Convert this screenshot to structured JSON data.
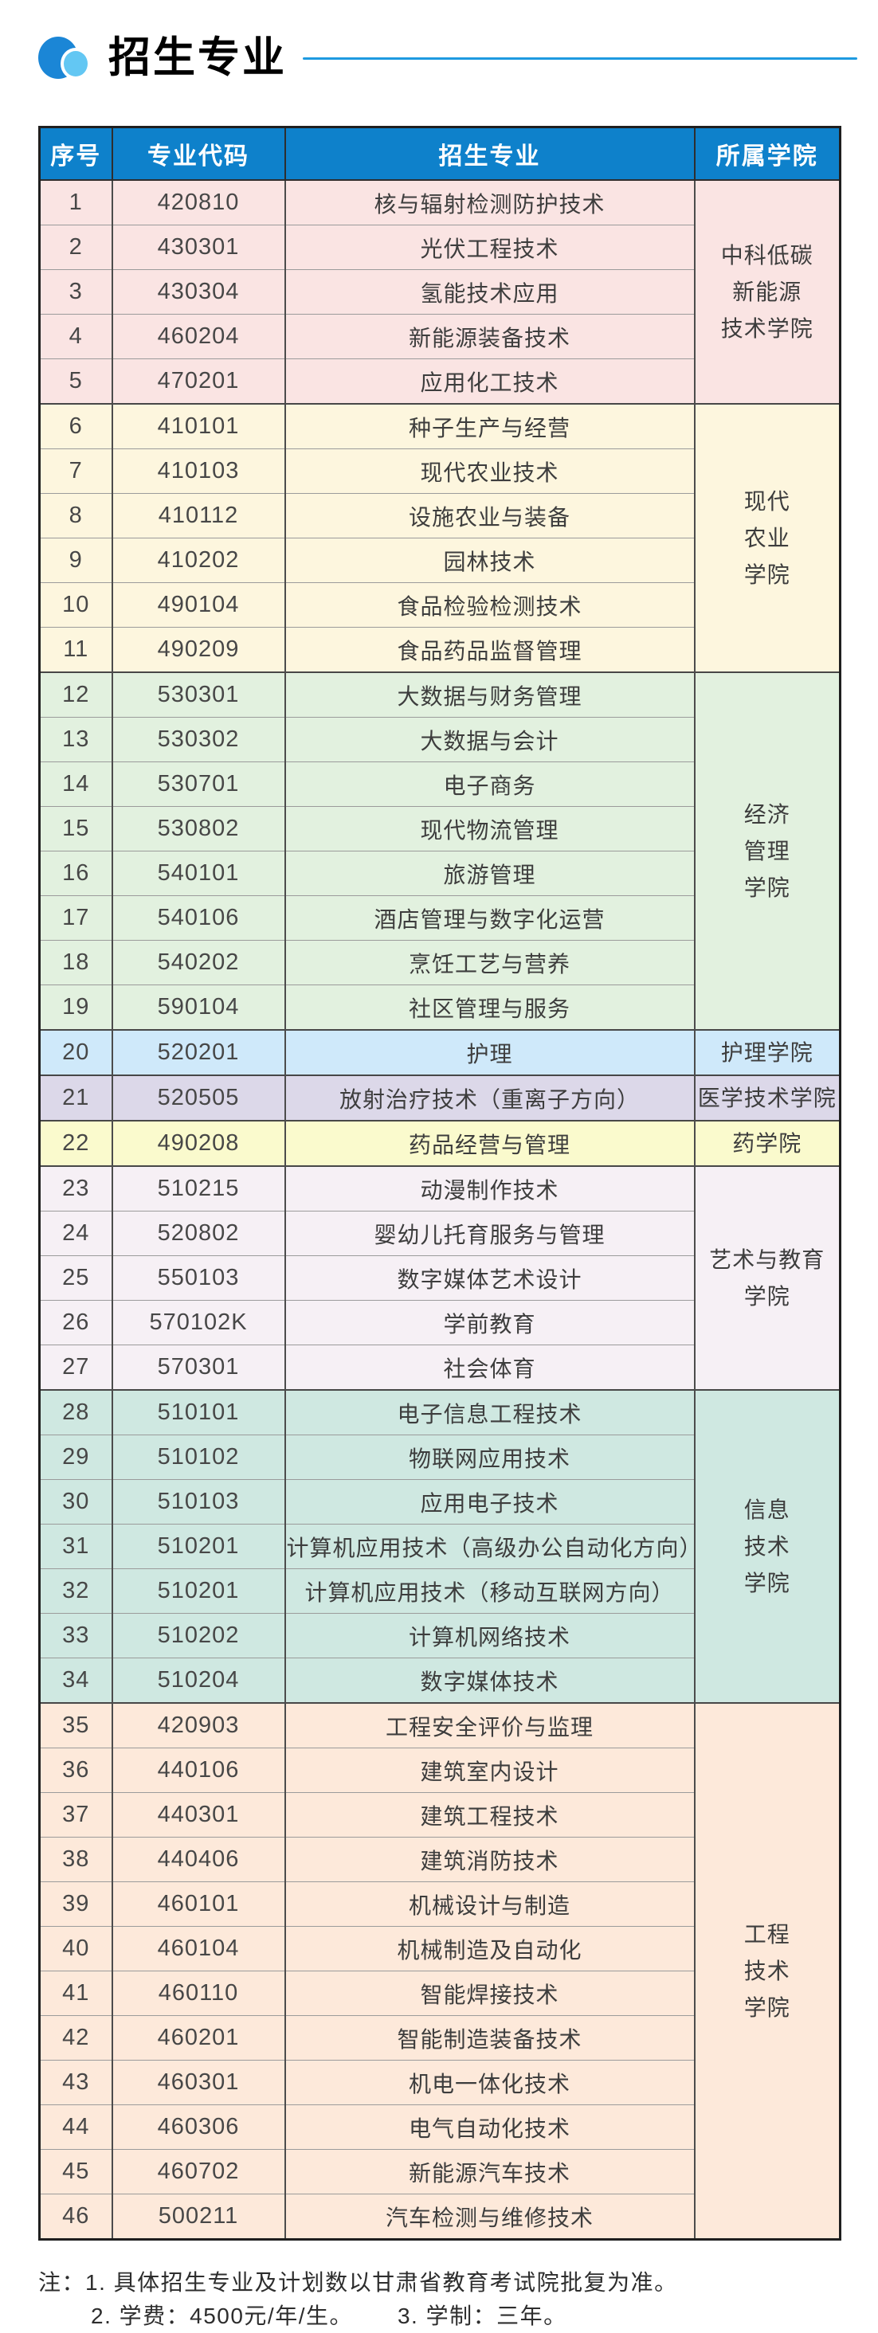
{
  "page_title": "招生专业",
  "colors": {
    "accent_blue": "#1e9ae0",
    "bullet_big": "#1b86d6",
    "bullet_small": "#63c7f3",
    "header_bg": "#0e81cb",
    "header_text": "#ffffff"
  },
  "table": {
    "headers": [
      "序号",
      "专业代码",
      "招生专业",
      "所属学院"
    ],
    "groups": [
      {
        "college": "中科低碳新能源技术学院",
        "college_display": "中科低碳\n新能源\n技术学院",
        "bg": "#fae4e3",
        "rows": [
          {
            "no": "1",
            "code": "420810",
            "major": "核与辐射检测防护技术"
          },
          {
            "no": "2",
            "code": "430301",
            "major": "光伏工程技术"
          },
          {
            "no": "3",
            "code": "430304",
            "major": "氢能技术应用"
          },
          {
            "no": "4",
            "code": "460204",
            "major": "新能源装备技术"
          },
          {
            "no": "5",
            "code": "470201",
            "major": "应用化工技术"
          }
        ]
      },
      {
        "college": "现代农业学院",
        "college_display": "现代\n农业\n学院",
        "bg": "#fdf6de",
        "rows": [
          {
            "no": "6",
            "code": "410101",
            "major": "种子生产与经营"
          },
          {
            "no": "7",
            "code": "410103",
            "major": "现代农业技术"
          },
          {
            "no": "8",
            "code": "410112",
            "major": "设施农业与装备"
          },
          {
            "no": "9",
            "code": "410202",
            "major": "园林技术"
          },
          {
            "no": "10",
            "code": "490104",
            "major": "食品检验检测技术"
          },
          {
            "no": "11",
            "code": "490209",
            "major": "食品药品监督管理"
          }
        ]
      },
      {
        "college": "经济管理学院",
        "college_display": "经济\n管理\n学院",
        "bg": "#e2f1df",
        "rows": [
          {
            "no": "12",
            "code": "530301",
            "major": "大数据与财务管理"
          },
          {
            "no": "13",
            "code": "530302",
            "major": "大数据与会计"
          },
          {
            "no": "14",
            "code": "530701",
            "major": "电子商务"
          },
          {
            "no": "15",
            "code": "530802",
            "major": "现代物流管理"
          },
          {
            "no": "16",
            "code": "540101",
            "major": "旅游管理"
          },
          {
            "no": "17",
            "code": "540106",
            "major": "酒店管理与数字化运营"
          },
          {
            "no": "18",
            "code": "540202",
            "major": "烹饪工艺与营养"
          },
          {
            "no": "19",
            "code": "590104",
            "major": "社区管理与服务"
          }
        ]
      },
      {
        "college": "护理学院",
        "college_display": "护理学院",
        "bg": "#cfe9fa",
        "rows": [
          {
            "no": "20",
            "code": "520201",
            "major": "护理"
          }
        ]
      },
      {
        "college": "医学技术学院",
        "college_display": "医学技术学院",
        "bg": "#dcd8e9",
        "rows": [
          {
            "no": "21",
            "code": "520505",
            "major": "放射治疗技术（重离子方向）"
          }
        ]
      },
      {
        "college": "药学院",
        "college_display": "药学院",
        "bg": "#fafacd",
        "rows": [
          {
            "no": "22",
            "code": "490208",
            "major": "药品经营与管理"
          }
        ]
      },
      {
        "college": "艺术与教育学院",
        "college_display": "艺术与教育\n学院",
        "bg": "#f6f0f5",
        "rows": [
          {
            "no": "23",
            "code": "510215",
            "major": "动漫制作技术"
          },
          {
            "no": "24",
            "code": "520802",
            "major": "婴幼儿托育服务与管理"
          },
          {
            "no": "25",
            "code": "550103",
            "major": "数字媒体艺术设计"
          },
          {
            "no": "26",
            "code": "570102K",
            "major": "学前教育"
          },
          {
            "no": "27",
            "code": "570301",
            "major": "社会体育"
          }
        ]
      },
      {
        "college": "信息技术学院",
        "college_display": "信息\n技术\n学院",
        "bg": "#cfe8e1",
        "rows": [
          {
            "no": "28",
            "code": "510101",
            "major": "电子信息工程技术"
          },
          {
            "no": "29",
            "code": "510102",
            "major": "物联网应用技术"
          },
          {
            "no": "30",
            "code": "510103",
            "major": "应用电子技术"
          },
          {
            "no": "31",
            "code": "510201",
            "major": "计算机应用技术（高级办公自动化方向）"
          },
          {
            "no": "32",
            "code": "510201",
            "major": "计算机应用技术（移动互联网方向）"
          },
          {
            "no": "33",
            "code": "510202",
            "major": "计算机网络技术"
          },
          {
            "no": "34",
            "code": "510204",
            "major": "数字媒体技术"
          }
        ]
      },
      {
        "college": "工程技术学院",
        "college_display": "工程\n技术\n学院",
        "bg": "#fde9da",
        "rows": [
          {
            "no": "35",
            "code": "420903",
            "major": "工程安全评价与监理"
          },
          {
            "no": "36",
            "code": "440106",
            "major": "建筑室内设计"
          },
          {
            "no": "37",
            "code": "440301",
            "major": "建筑工程技术"
          },
          {
            "no": "38",
            "code": "440406",
            "major": "建筑消防技术"
          },
          {
            "no": "39",
            "code": "460101",
            "major": "机械设计与制造"
          },
          {
            "no": "40",
            "code": "460104",
            "major": "机械制造及自动化"
          },
          {
            "no": "41",
            "code": "460110",
            "major": "智能焊接技术"
          },
          {
            "no": "42",
            "code": "460201",
            "major": "智能制造装备技术"
          },
          {
            "no": "43",
            "code": "460301",
            "major": "机电一体化技术"
          },
          {
            "no": "44",
            "code": "460306",
            "major": "电气自动化技术"
          },
          {
            "no": "45",
            "code": "460702",
            "major": "新能源汽车技术"
          },
          {
            "no": "46",
            "code": "500211",
            "major": "汽车检测与维修技术"
          }
        ]
      }
    ]
  },
  "notes": {
    "label": "注：",
    "items": [
      "1. 具体招生专业及计划数以甘肃省教育考试院批复为准。",
      "2. 学费：4500元/年/生。",
      "3. 学制：三年。"
    ]
  }
}
